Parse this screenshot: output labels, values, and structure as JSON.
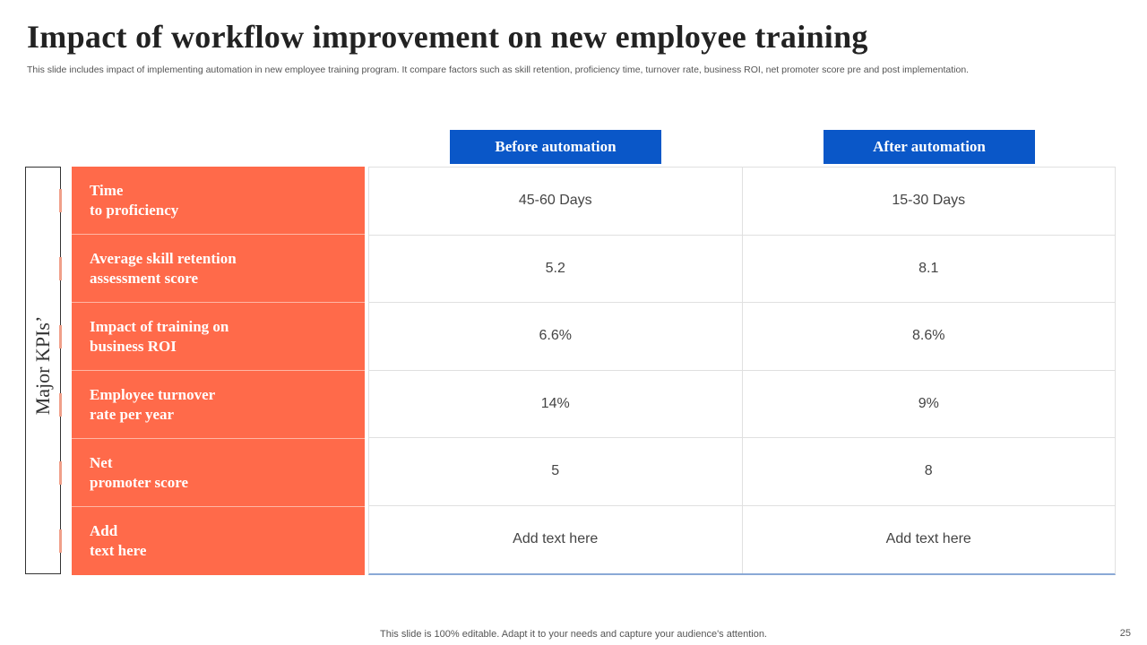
{
  "slide": {
    "title": "Impact of workflow improvement on new employee training",
    "subtitle": "This slide includes impact of implementing automation in new employee training program. It compare factors such as skill retention, proficiency time, turnover rate, business ROI, net promoter score pre and post implementation.",
    "footer": "This slide is 100% editable. Adapt it to your needs and capture your audience's attention.",
    "page_number": "25"
  },
  "table": {
    "side_label": "Major KPIs’",
    "headers": {
      "before": "Before automation",
      "after": "After automation"
    },
    "rows": [
      {
        "kpi": [
          "Time",
          "to proficiency"
        ],
        "before": "45-60 Days",
        "after": "15-30 Days"
      },
      {
        "kpi": [
          "Average skill retention",
          "assessment score"
        ],
        "before": "5.2",
        "after": "8.1"
      },
      {
        "kpi": [
          "Impact of training on",
          "business ROI"
        ],
        "before": "6.6%",
        "after": "8.6%"
      },
      {
        "kpi": [
          "Employee turnover",
          "rate per year"
        ],
        "before": "14%",
        "after": "9%"
      },
      {
        "kpi": [
          "Net",
          "promoter score"
        ],
        "before": "5",
        "after": "8"
      },
      {
        "kpi": [
          "Add",
          "text here"
        ],
        "before": "Add text here",
        "after": "Add text here"
      }
    ]
  },
  "colors": {
    "kpi_background": "#ff6a4a",
    "header_background": "#0a57c8"
  }
}
